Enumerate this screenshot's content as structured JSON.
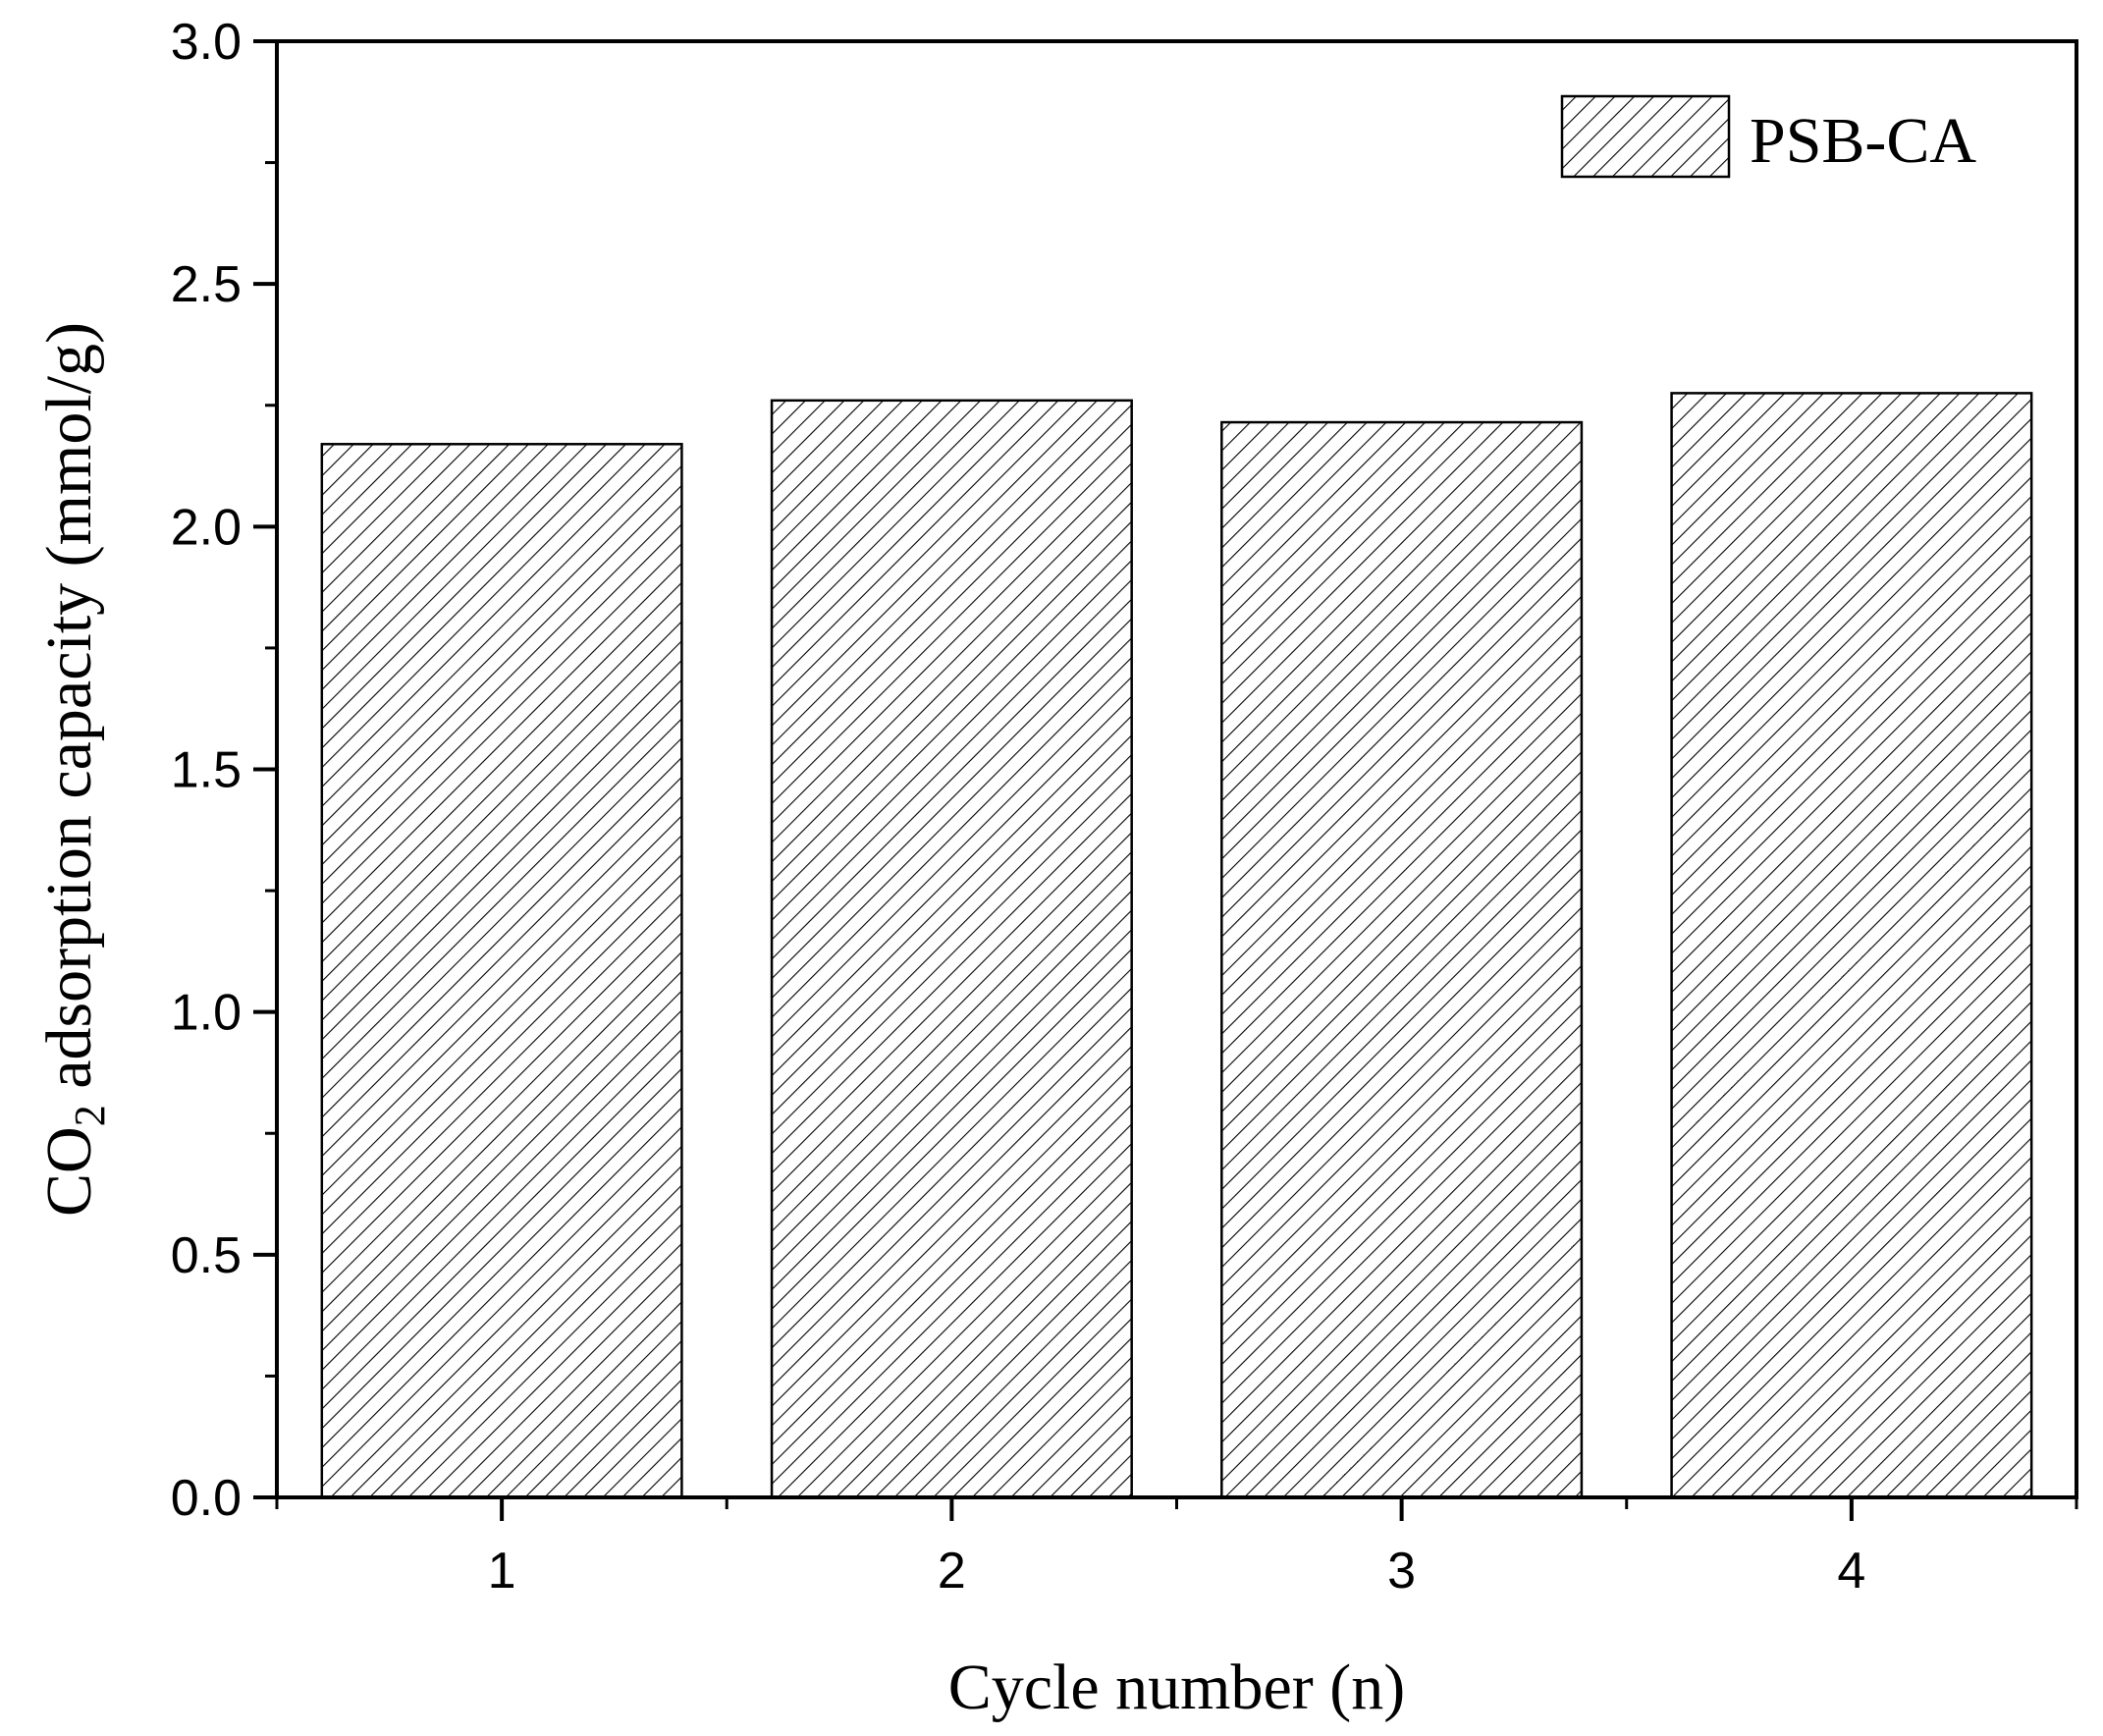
{
  "chart_data": {
    "type": "bar",
    "title": "",
    "categories": [
      "1",
      "2",
      "3",
      "4"
    ],
    "series": [
      {
        "name": "PSB-CA",
        "values": [
          2.17,
          2.26,
          2.215,
          2.275
        ],
        "pattern": "diagonal-hatch",
        "color": "#000000"
      }
    ],
    "xlabel": "Cycle number (n)",
    "ylabel": {
      "prefix": "CO",
      "subscript": "2",
      "suffix": " adsorption capacity (mmol/g)"
    },
    "ylim": [
      0,
      3.0
    ],
    "yticks": [
      "0.0",
      "0.5",
      "1.0",
      "1.5",
      "2.0",
      "2.5",
      "3.0"
    ],
    "grid": false,
    "legend_position": "top-right"
  }
}
